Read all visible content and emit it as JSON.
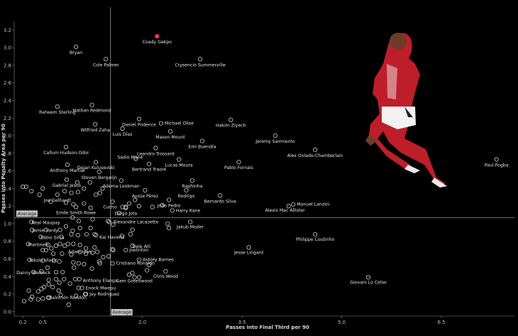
{
  "chart_data": {
    "type": "scatter",
    "title": "",
    "xlabel": "Passes into Final Third per 90",
    "ylabel": "Passes into Penalty Area per 90",
    "xlim": [
      0.07,
      7.6
    ],
    "ylim": [
      -0.05,
      3.3
    ],
    "xticks": [
      "0.2",
      "0.3",
      "0.4",
      "0.5",
      "0.6",
      "0.7",
      "0.8",
      "0.9",
      "1.0",
      "1.1",
      "1.2",
      "1.3",
      "1.4",
      "1.5",
      "1.6",
      "1.7",
      "1.8",
      "1.9",
      "2.0",
      "2.1",
      "2.2",
      "2.3",
      "2.4",
      "2.5",
      "2.6",
      "2.7",
      "2.8",
      "2.9",
      "3.0",
      "3.1",
      "3.2",
      "3.3",
      "3.4",
      "3.5",
      "3.6",
      "3.7",
      "3.8",
      "3.9",
      "4.0",
      "4.1",
      "4.2",
      "4.3",
      "4.4",
      "4.5",
      "4.6",
      "4.7",
      "4.8",
      "4.9",
      "5.0",
      "5.1",
      "5.2",
      "5.3",
      "5.4",
      "5.5",
      "5.6",
      "5.7",
      "5.8",
      "5.9",
      "6.0",
      "6.1",
      "6.2",
      "6.3",
      "6.4",
      "6.5",
      "6.6",
      "6.7",
      "6.8",
      "6.9",
      "7.0",
      "7.1",
      "7.2",
      "7.3",
      "7.4",
      "7.5"
    ],
    "yticks": [
      "0.0",
      "0.2",
      "0.4",
      "0.6",
      "0.8",
      "1.0",
      "1.2",
      "1.4",
      "1.6",
      "1.8",
      "2.0",
      "2.2",
      "2.4",
      "2.6",
      "2.8",
      "3.0",
      "3.2"
    ],
    "grid": false,
    "averages": {
      "x": 1.52,
      "y": 1.07,
      "x_label": "Average",
      "y_label": "Average"
    },
    "highlight": {
      "name": "Coady Gakpo",
      "color": "#e8404c"
    },
    "point_color": "#cfcfcf",
    "labeled_points": [
      {
        "name": "Coady Gakpo",
        "x": 2.22,
        "y": 3.13,
        "dx": 0,
        "dy": -8,
        "anchor": "middle"
      },
      {
        "name": "Bryan",
        "x": 1.0,
        "y": 3.01,
        "dx": 0,
        "dy": -8,
        "anchor": "middle"
      },
      {
        "name": "Cole Palmer",
        "x": 1.45,
        "y": 2.87,
        "dx": 0,
        "dy": -8,
        "anchor": "middle"
      },
      {
        "name": "Crysencio Summerville",
        "x": 2.87,
        "y": 2.87,
        "dx": 0,
        "dy": -8,
        "anchor": "middle"
      },
      {
        "name": "Raheem Sterling",
        "x": 0.72,
        "y": 2.33,
        "dx": 0,
        "dy": -8,
        "anchor": "middle"
      },
      {
        "name": "Nathan Redmond",
        "x": 1.24,
        "y": 2.35,
        "dx": 0,
        "dy": -8,
        "anchor": "middle"
      },
      {
        "name": "Daniel Podence",
        "x": 1.95,
        "y": 2.19,
        "dx": 0,
        "dy": -8,
        "anchor": "middle"
      },
      {
        "name": "Michael Olise",
        "x": 2.28,
        "y": 2.14,
        "dx": 5,
        "dy": 2,
        "anchor": "start"
      },
      {
        "name": "Hakim Ziyech",
        "x": 3.33,
        "y": 2.18,
        "dx": 0,
        "dy": -8,
        "anchor": "middle"
      },
      {
        "name": "Wilfried Zaha",
        "x": 1.29,
        "y": 2.13,
        "dx": 0,
        "dy": -8,
        "anchor": "middle"
      },
      {
        "name": "Luis Díaz",
        "x": 1.7,
        "y": 2.08,
        "dx": 0,
        "dy": -8,
        "anchor": "middle"
      },
      {
        "name": "Mason Mount",
        "x": 2.42,
        "y": 2.05,
        "dx": 0,
        "dy": -8,
        "anchor": "middle"
      },
      {
        "name": "Jeremy Sarmiento",
        "x": 4.0,
        "y": 2.0,
        "dx": 0,
        "dy": -8,
        "anchor": "middle"
      },
      {
        "name": "Emi Buendía",
        "x": 2.9,
        "y": 1.94,
        "dx": 0,
        "dy": -8,
        "anchor": "middle"
      },
      {
        "name": "Callum Hudson-Odoi",
        "x": 0.85,
        "y": 1.87,
        "dx": 0,
        "dy": -8,
        "anchor": "middle"
      },
      {
        "name": "Leandro Trossard",
        "x": 2.2,
        "y": 1.86,
        "dx": 0,
        "dy": -8,
        "anchor": "middle"
      },
      {
        "name": "Alex Oxlade-Chamberlain",
        "x": 4.6,
        "y": 1.84,
        "dx": 0,
        "dy": -8,
        "anchor": "middle"
      },
      {
        "name": "Sadio Mané",
        "x": 1.9,
        "y": 1.74,
        "dx": -8,
        "dy": 0,
        "anchor": "middle"
      },
      {
        "name": "Lucas Moura",
        "x": 2.55,
        "y": 1.73,
        "dx": 0,
        "dy": -8,
        "anchor": "middle"
      },
      {
        "name": "Pablo Fornals",
        "x": 3.45,
        "y": 1.7,
        "dx": 0,
        "dy": -8,
        "anchor": "middle"
      },
      {
        "name": "Dejan Kulusevski",
        "x": 1.3,
        "y": 1.7,
        "dx": 0,
        "dy": -8,
        "anchor": "middle"
      },
      {
        "name": "Anthony Martial",
        "x": 0.87,
        "y": 1.67,
        "dx": 0,
        "dy": -8,
        "anchor": "middle"
      },
      {
        "name": "Bertrand Traoré",
        "x": 2.1,
        "y": 1.68,
        "dx": 0,
        "dy": -8,
        "anchor": "middle"
      },
      {
        "name": "Steven Bergwijn",
        "x": 1.35,
        "y": 1.59,
        "dx": 0,
        "dy": -8,
        "anchor": "middle"
      },
      {
        "name": "Adema Lookman",
        "x": 1.68,
        "y": 1.49,
        "dx": 0,
        "dy": -8,
        "anchor": "middle"
      },
      {
        "name": "Raphinha",
        "x": 2.75,
        "y": 1.49,
        "dx": 0,
        "dy": -8,
        "anchor": "middle"
      },
      {
        "name": "Gabriel Jesus",
        "x": 0.86,
        "y": 1.5,
        "dx": 0,
        "dy": -8,
        "anchor": "middle"
      },
      {
        "name": "Paul Pogba",
        "x": 7.33,
        "y": 1.73,
        "dx": 0,
        "dy": -8,
        "anchor": "middle"
      },
      {
        "name": "Joe Gelhardt",
        "x": 0.72,
        "y": 1.33,
        "dx": 0,
        "dy": -8,
        "anchor": "middle"
      },
      {
        "name": "Ayoze Pérez",
        "x": 2.04,
        "y": 1.38,
        "dx": 0,
        "dy": -8,
        "anchor": "middle"
      },
      {
        "name": "Rodrigo",
        "x": 2.66,
        "y": 1.38,
        "dx": 0,
        "dy": -8,
        "anchor": "middle"
      },
      {
        "name": "Bernardo Silva",
        "x": 3.17,
        "y": 1.32,
        "dx": 0,
        "dy": -8,
        "anchor": "middle"
      },
      {
        "name": "João Pedro",
        "x": 2.4,
        "y": 1.27,
        "dx": 0,
        "dy": -8,
        "anchor": "middle"
      },
      {
        "name": "Manuel Lanzini",
        "x": 4.27,
        "y": 1.22,
        "dx": 5,
        "dy": 2,
        "anchor": "start"
      },
      {
        "name": "Emile Smith Rowe",
        "x": 1.0,
        "y": 1.19,
        "dx": 0,
        "dy": -8,
        "anchor": "middle"
      },
      {
        "name": "Cucho",
        "x": 1.7,
        "y": 1.19,
        "dx": -8,
        "dy": 2,
        "anchor": "end"
      },
      {
        "name": "Diogo Jota",
        "x": 1.75,
        "y": 1.18,
        "dx": 0,
        "dy": -8,
        "anchor": "middle"
      },
      {
        "name": "Harry Kane",
        "x": 2.45,
        "y": 1.15,
        "dx": 5,
        "dy": 2,
        "anchor": "start"
      },
      {
        "name": "Alexis Mac Allister",
        "x": 4.2,
        "y": 1.2,
        "dx": -5,
        "dy": 8,
        "anchor": "middle"
      },
      {
        "name": "Neal Maupay",
        "x": 0.33,
        "y": 1.02,
        "dx": 0,
        "dy": 3,
        "anchor": "start"
      },
      {
        "name": "Alexandre Lacazette",
        "x": 1.5,
        "y": 1.02,
        "dx": 6,
        "dy": 2,
        "anchor": "start"
      },
      {
        "name": "Jamie Vardy",
        "x": 0.34,
        "y": 0.93,
        "dx": 0,
        "dy": 3,
        "anchor": "start"
      },
      {
        "name": "Jakub Moder",
        "x": 2.72,
        "y": 1.02,
        "dx": 0,
        "dy": 9,
        "anchor": "middle"
      },
      {
        "name": "Fábio Silva",
        "x": 0.47,
        "y": 0.85,
        "dx": 0,
        "dy": 3,
        "anchor": "start"
      },
      {
        "name": "Kai Havertz",
        "x": 1.3,
        "y": 0.87,
        "dx": 5,
        "dy": 5,
        "anchor": "start"
      },
      {
        "name": "Philippe Coutinho",
        "x": 4.6,
        "y": 0.88,
        "dx": 0,
        "dy": 9,
        "anchor": "middle"
      },
      {
        "name": "Martinelli",
        "x": 0.28,
        "y": 0.77,
        "dx": 0,
        "dy": 3,
        "anchor": "start"
      },
      {
        "name": "Dele Alli",
        "x": 1.85,
        "y": 0.75,
        "dx": 0,
        "dy": 3,
        "anchor": "start"
      },
      {
        "name": "Jesse Lingard",
        "x": 3.6,
        "y": 0.73,
        "dx": 0,
        "dy": 9,
        "anchor": "middle"
      },
      {
        "name": "Joelinton",
        "x": 1.75,
        "y": 0.7,
        "dx": 5,
        "dy": 2,
        "anchor": "start"
      },
      {
        "name": "Adam Idah",
        "x": 1.06,
        "y": 0.68,
        "dx": 0,
        "dy": 2,
        "anchor": "middle"
      },
      {
        "name": "Nikola Vlašić",
        "x": 0.3,
        "y": 0.59,
        "dx": 0,
        "dy": 3,
        "anchor": "start"
      },
      {
        "name": "Ashley Barnes",
        "x": 1.95,
        "y": 0.59,
        "dx": 5,
        "dy": 2,
        "anchor": "start"
      },
      {
        "name": "Cristiano Ronaldo",
        "x": 1.55,
        "y": 0.55,
        "dx": 5,
        "dy": 2,
        "anchor": "start"
      },
      {
        "name": "Danny Welbeck",
        "x": 0.36,
        "y": 0.45,
        "dx": 0,
        "dy": 3,
        "anchor": "middle"
      },
      {
        "name": "Chris Wood",
        "x": 2.35,
        "y": 0.46,
        "dx": 0,
        "dy": 9,
        "anchor": "middle"
      },
      {
        "name": "Anthony Elanga",
        "x": 1.05,
        "y": 0.37,
        "dx": 5,
        "dy": 4,
        "anchor": "start"
      },
      {
        "name": "Giovani Lo Celso",
        "x": 5.4,
        "y": 0.39,
        "dx": 0,
        "dy": 9,
        "anchor": "middle"
      },
      {
        "name": "Sam Greenwood",
        "x": 1.88,
        "y": 0.39,
        "dx": 0,
        "dy": 7,
        "anchor": "middle"
      },
      {
        "name": "Enock Mwepu",
        "x": 1.09,
        "y": 0.27,
        "dx": 5,
        "dy": 2,
        "anchor": "start"
      },
      {
        "name": "Jay Rodriguez",
        "x": 1.15,
        "y": 0.2,
        "dx": 5,
        "dy": 2,
        "anchor": "start"
      },
      {
        "name": "Salomón Rondón",
        "x": 0.6,
        "y": 0.16,
        "dx": 0,
        "dy": 2,
        "anchor": "start"
      }
    ],
    "points": [
      [
        0.2,
        1.42
      ],
      [
        0.25,
        1.42
      ],
      [
        0.5,
        1.4
      ],
      [
        0.33,
        1.37
      ],
      [
        0.45,
        1.33
      ],
      [
        1.03,
        1.36
      ],
      [
        1.02,
        1.47
      ],
      [
        1.12,
        1.4
      ],
      [
        1.21,
        1.47
      ],
      [
        0.83,
        1.37
      ],
      [
        0.93,
        1.35
      ],
      [
        1.3,
        1.33
      ],
      [
        1.36,
        1.35
      ],
      [
        1.4,
        1.4
      ],
      [
        0.62,
        1.25
      ],
      [
        0.85,
        1.24
      ],
      [
        0.96,
        1.22
      ],
      [
        1.12,
        1.23
      ],
      [
        1.22,
        1.18
      ],
      [
        1.75,
        1.19
      ],
      [
        1.89,
        1.27
      ],
      [
        2.15,
        1.19
      ],
      [
        1.55,
        1.25
      ],
      [
        1.8,
        1.23
      ],
      [
        1.95,
        1.2
      ],
      [
        2.3,
        1.21
      ],
      [
        1.65,
        1.12
      ],
      [
        0.95,
        1.07
      ],
      [
        1.04,
        1.03
      ],
      [
        1.25,
        1.05
      ],
      [
        1.48,
        1.03
      ],
      [
        1.56,
        0.99
      ],
      [
        1.06,
        0.95
      ],
      [
        1.22,
        0.95
      ],
      [
        2.38,
        1.0
      ],
      [
        2.4,
        0.95
      ],
      [
        0.55,
        0.93
      ],
      [
        0.76,
        0.93
      ],
      [
        0.85,
        0.97
      ],
      [
        0.95,
        0.92
      ],
      [
        0.78,
        0.85
      ],
      [
        0.93,
        0.88
      ],
      [
        1.03,
        0.87
      ],
      [
        1.16,
        0.88
      ],
      [
        1.28,
        0.88
      ],
      [
        1.69,
        0.86
      ],
      [
        1.82,
        0.88
      ],
      [
        1.85,
        0.93
      ],
      [
        0.58,
        0.76
      ],
      [
        0.63,
        0.72
      ],
      [
        0.7,
        0.75
      ],
      [
        0.76,
        0.77
      ],
      [
        0.83,
        0.75
      ],
      [
        0.88,
        0.77
      ],
      [
        0.96,
        0.77
      ],
      [
        1.06,
        0.76
      ],
      [
        1.15,
        0.72
      ],
      [
        1.28,
        0.73
      ],
      [
        0.5,
        0.7
      ],
      [
        0.55,
        0.7
      ],
      [
        0.66,
        0.66
      ],
      [
        0.79,
        0.66
      ],
      [
        0.93,
        0.65
      ],
      [
        1.15,
        0.66
      ],
      [
        1.25,
        0.67
      ],
      [
        1.32,
        0.68
      ],
      [
        1.55,
        0.71
      ],
      [
        1.56,
        0.7
      ],
      [
        0.5,
        0.58
      ],
      [
        0.67,
        0.58
      ],
      [
        0.75,
        0.57
      ],
      [
        0.96,
        0.56
      ],
      [
        1.04,
        0.55
      ],
      [
        1.12,
        0.54
      ],
      [
        1.35,
        0.57
      ],
      [
        1.41,
        0.62
      ],
      [
        1.49,
        0.63
      ],
      [
        0.48,
        0.46
      ],
      [
        0.57,
        0.5
      ],
      [
        0.7,
        0.45
      ],
      [
        0.8,
        0.45
      ],
      [
        0.97,
        0.5
      ],
      [
        1.24,
        0.49
      ],
      [
        1.36,
        0.55
      ],
      [
        1.85,
        0.44
      ],
      [
        2.1,
        0.53
      ],
      [
        0.59,
        0.36
      ],
      [
        0.7,
        0.37
      ],
      [
        0.75,
        0.33
      ],
      [
        0.82,
        0.37
      ],
      [
        0.91,
        0.32
      ],
      [
        0.99,
        0.37
      ],
      [
        1.8,
        0.42
      ],
      [
        1.95,
        0.39
      ],
      [
        2.07,
        0.47
      ],
      [
        0.29,
        0.24
      ],
      [
        0.43,
        0.23
      ],
      [
        0.48,
        0.26
      ],
      [
        0.52,
        0.28
      ],
      [
        0.59,
        0.31
      ],
      [
        0.65,
        0.28
      ],
      [
        0.74,
        0.24
      ],
      [
        1.04,
        0.27
      ],
      [
        0.22,
        0.12
      ],
      [
        0.32,
        0.14
      ],
      [
        0.34,
        0.17
      ],
      [
        0.43,
        0.14
      ],
      [
        0.5,
        0.15
      ],
      [
        0.58,
        0.16
      ],
      [
        0.77,
        0.19
      ],
      [
        1.0,
        0.18
      ],
      [
        1.14,
        0.2
      ],
      [
        0.89,
        0.08
      ]
    ]
  }
}
